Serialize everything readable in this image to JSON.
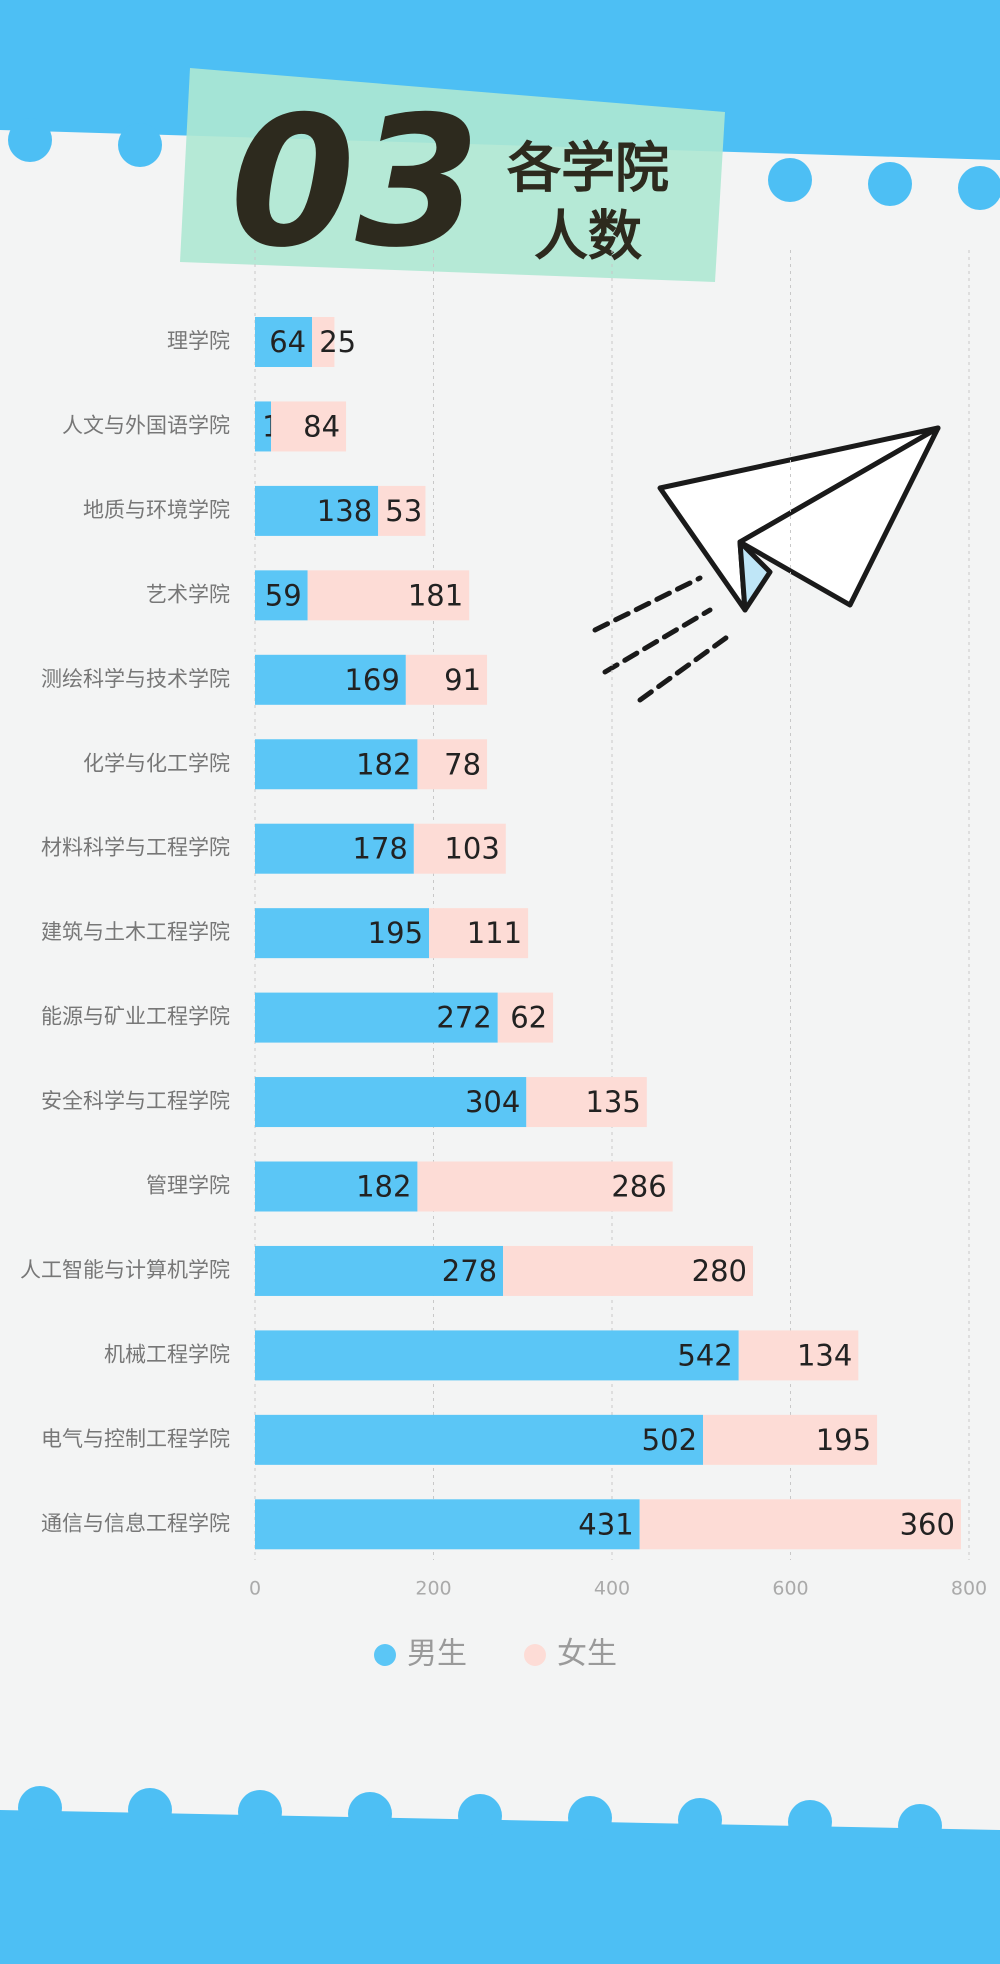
{
  "chart_data": {
    "type": "stacked-bar-horizontal",
    "badge": "03",
    "title_lines": [
      "各学院",
      "人数"
    ],
    "categories": [
      "理学院",
      "人文与外国语学院",
      "地质与环境学院",
      "艺术学院",
      "测绘科学与技术学院",
      "化学与化工学院",
      "材料科学与工程学院",
      "建筑与土木工程学院",
      "能源与矿业工程学院",
      "安全科学与工程学院",
      "管理学院",
      "人工智能与计算机学院",
      "机械工程学院",
      "电气与控制工程学院",
      "通信与信息工程学院"
    ],
    "series": [
      {
        "name": "男生",
        "color": "#5bc6f6",
        "values": [
          64,
          18,
          138,
          59,
          169,
          182,
          178,
          195,
          272,
          304,
          182,
          278,
          542,
          502,
          431
        ]
      },
      {
        "name": "女生",
        "color": "#fddcd6",
        "values": [
          25,
          84,
          53,
          181,
          91,
          78,
          103,
          111,
          62,
          135,
          286,
          280,
          134,
          195,
          360
        ]
      }
    ],
    "xlim": [
      0,
      800
    ],
    "xticks": [
      0,
      200,
      400,
      600,
      800
    ],
    "grid": true,
    "legend": "bottom"
  }
}
